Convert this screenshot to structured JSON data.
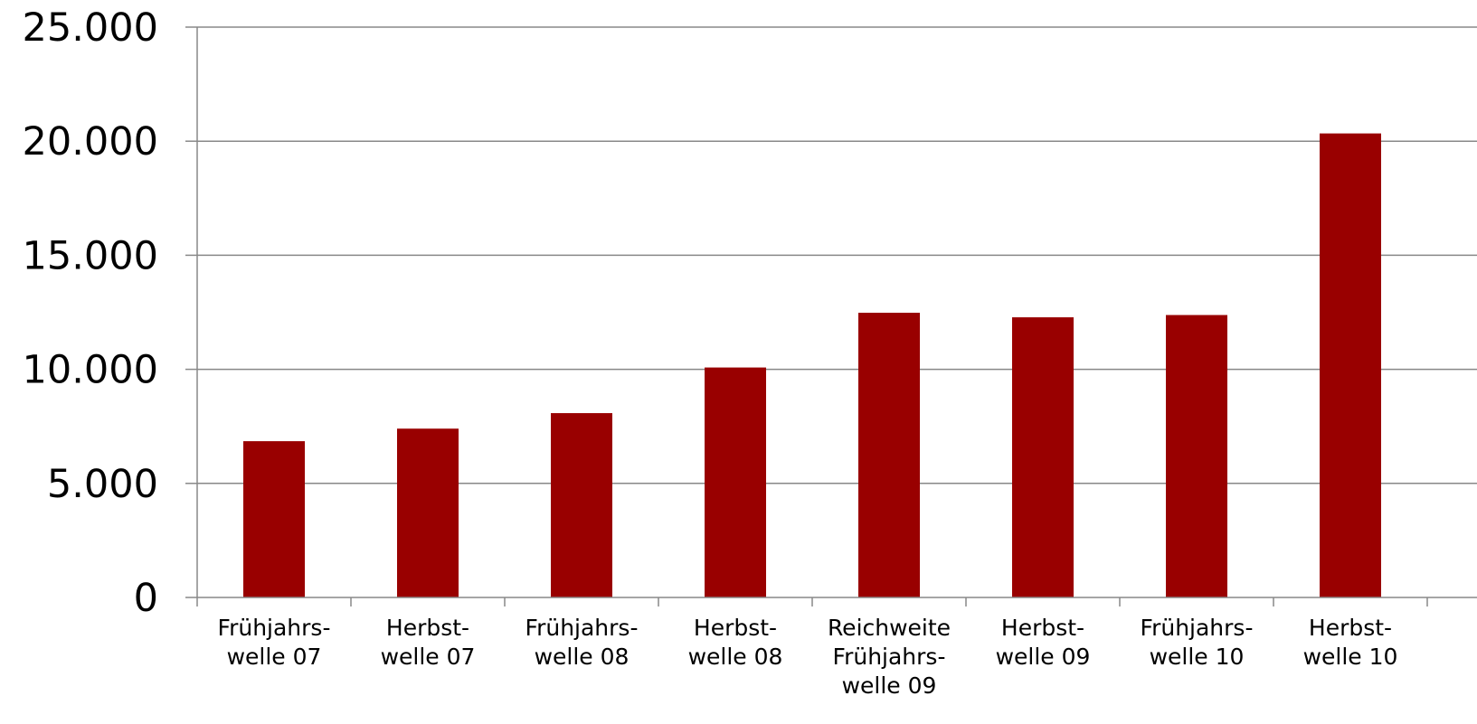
{
  "chart_data": {
    "type": "bar",
    "categories": [
      [
        "Frühjahrs-",
        "welle 07"
      ],
      [
        "Herbst-",
        "welle 07"
      ],
      [
        "Frühjahrs-",
        "welle 08"
      ],
      [
        "Herbst-",
        "welle 08"
      ],
      [
        "Reichweite",
        "Frühjahrs-",
        "welle 09"
      ],
      [
        "Herbst-",
        "welle 09"
      ],
      [
        "Frühjahrs-",
        "welle 10"
      ],
      [
        "Herbst-",
        "welle 10"
      ]
    ],
    "values": [
      6850,
      7400,
      8080,
      10080,
      12480,
      12280,
      12380,
      20340
    ],
    "ylim": [
      0,
      25000
    ],
    "yticks": [
      0,
      5000,
      10000,
      15000,
      20000,
      25000
    ],
    "ytick_labels": [
      "0",
      "5.000",
      "10.000",
      "15.000",
      "20.000",
      "25.000"
    ],
    "grid": true,
    "colors": {
      "bar": "#990000",
      "grid": "#888888",
      "axis": "#888888"
    }
  }
}
